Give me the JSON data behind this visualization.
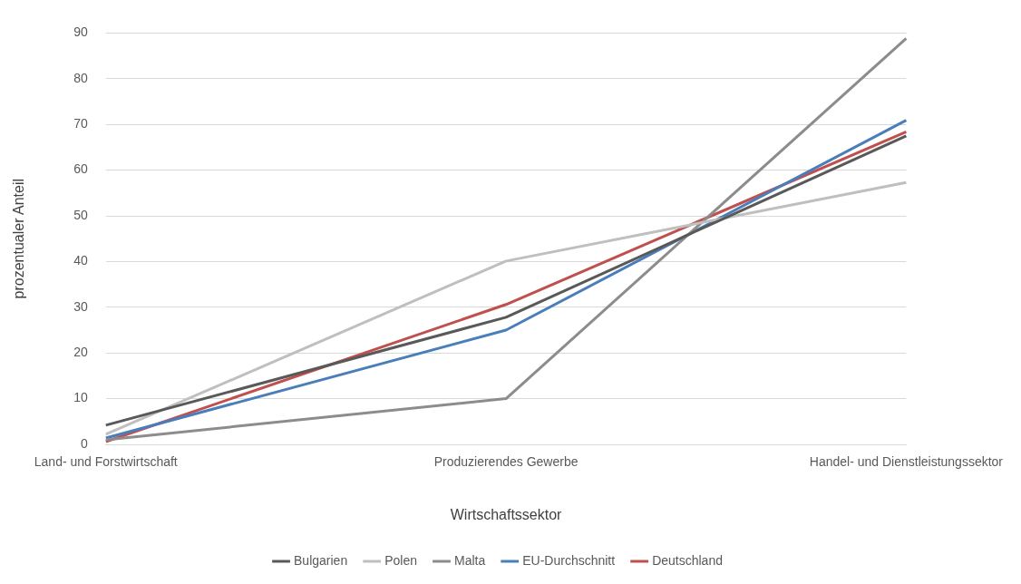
{
  "chart_data": {
    "type": "line",
    "xlabel": "Wirtschaftssektor",
    "ylabel": "prozentualer Anteil",
    "categories": [
      "Land- und Forstwirtschaft",
      "Produzierendes Gewerbe",
      "Handel- und Dienstleistungssektor"
    ],
    "series": [
      {
        "name": "Bulgarien",
        "color": "#595959",
        "values": [
          4.2,
          27.8,
          67.5
        ]
      },
      {
        "name": "Polen",
        "color": "#bfbfbf",
        "values": [
          2.2,
          40.1,
          57.3
        ]
      },
      {
        "name": "Malta",
        "color": "#8c8c8c",
        "values": [
          1.0,
          10.0,
          88.8
        ]
      },
      {
        "name": "EU-Durchschnitt",
        "color": "#4a7ebb",
        "values": [
          1.4,
          25.0,
          70.9
        ]
      },
      {
        "name": "Deutschland",
        "color": "#c0504d",
        "values": [
          0.6,
          30.6,
          68.4
        ]
      }
    ],
    "ylim": [
      0,
      90
    ],
    "yticks": [
      0,
      10,
      20,
      30,
      40,
      50,
      60,
      70,
      80,
      90
    ],
    "grid": "y",
    "legend": "bottom",
    "marker": "none",
    "line_style": "solid"
  }
}
